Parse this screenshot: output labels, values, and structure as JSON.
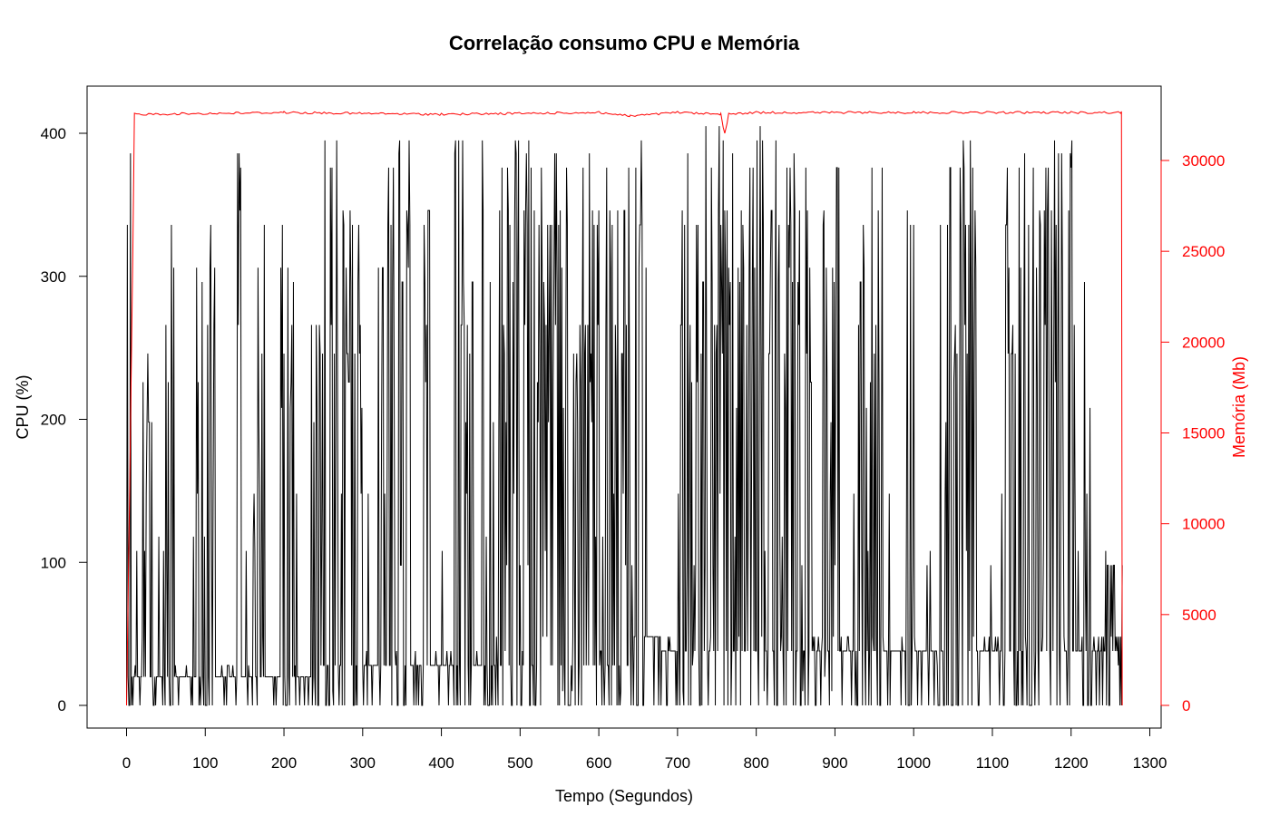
{
  "chart_data": {
    "type": "line",
    "title": "Correlação consumo CPU e Memória",
    "xlabel": "Tempo (Segundos)",
    "ylabel": "CPU (%)",
    "ylabel_right": "Memória (Mb)",
    "xlim": [
      0,
      1300
    ],
    "ylim": [
      0,
      430
    ],
    "ylim_right": [
      0,
      33000
    ],
    "x_ticks": [
      "0",
      "100",
      "200",
      "300",
      "400",
      "500",
      "600",
      "700",
      "800",
      "900",
      "1000",
      "1100",
      "1200",
      "1300"
    ],
    "y_ticks": [
      "0",
      "100",
      "200",
      "300",
      "400"
    ],
    "y_ticks_right": [
      "0",
      "5000",
      "10000",
      "15000",
      "20000",
      "25000",
      "30000"
    ],
    "grid": false,
    "colors": {
      "cpu": "#000000",
      "memory": "#ff0000",
      "frame": "#000000"
    },
    "series": [
      {
        "axis": "left",
        "x_range": [
          0,
          1265
        ],
        "sample_step_seconds": 1,
        "note_shape": "dense spikes",
        "bursts": [
          [
            0,
            8,
            405
          ],
          [
            20,
            34,
            245
          ],
          [
            50,
            60,
            405
          ],
          [
            88,
            96,
            336
          ],
          [
            100,
            112,
            395
          ],
          [
            140,
            145,
            395
          ],
          [
            160,
            175,
            346
          ],
          [
            195,
            212,
            346
          ],
          [
            235,
            270,
            405
          ],
          [
            275,
            300,
            376
          ],
          [
            320,
            340,
            395
          ],
          [
            345,
            360,
            405
          ],
          [
            375,
            385,
            395
          ],
          [
            415,
            440,
            415
          ],
          [
            450,
            500,
            405
          ],
          [
            505,
            560,
            405
          ],
          [
            560,
            600,
            405
          ],
          [
            605,
            660,
            405
          ],
          [
            700,
            760,
            415
          ],
          [
            760,
            800,
            395
          ],
          [
            800,
            830,
            415
          ],
          [
            835,
            870,
            395
          ],
          [
            885,
            905,
            405
          ],
          [
            925,
            960,
            376
          ],
          [
            990,
            1000,
            356
          ],
          [
            1030,
            1060,
            405
          ],
          [
            1060,
            1080,
            405
          ],
          [
            1115,
            1170,
            405
          ],
          [
            1170,
            1190,
            405
          ],
          [
            1195,
            1205,
            405
          ],
          [
            1215,
            1225,
            305
          ],
          [
            1235,
            1265,
            108
          ]
        ],
        "baseline_levels": [
          [
            0,
            120,
            20
          ],
          [
            120,
            240,
            20
          ],
          [
            240,
            640,
            28
          ],
          [
            640,
            680,
            45
          ],
          [
            680,
            1265,
            35
          ]
        ]
      },
      {
        "axis": "right",
        "x": [
          0,
          4,
          8,
          10,
          200,
          400,
          600,
          640,
          700,
          755,
          760,
          765,
          800,
          1000,
          1200,
          1264,
          1265
        ],
        "values": [
          0,
          12000,
          25000,
          32600,
          32700,
          32600,
          32700,
          32500,
          32700,
          32600,
          31500,
          32600,
          32700,
          32700,
          32700,
          32700,
          0
        ]
      }
    ]
  }
}
